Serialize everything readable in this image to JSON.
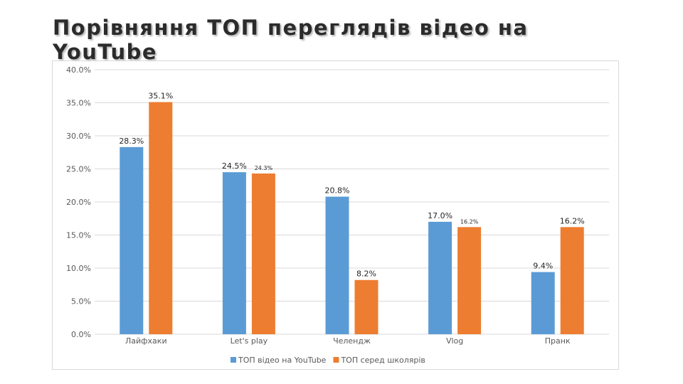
{
  "slide": {
    "title": "Порівняння ТОП переглядів відео на YouTube"
  },
  "chart_data": {
    "type": "bar",
    "categories": [
      "Лайфхаки",
      "Let's play",
      "Челендж",
      "Vlog",
      "Пранк"
    ],
    "series": [
      {
        "name": "ТОП відео на YouTube",
        "color": "#5B9BD5",
        "values": [
          28.3,
          24.5,
          20.8,
          17.0,
          9.4
        ],
        "labels": [
          "28.3%",
          "24.5%",
          "20.8%",
          "17.0%",
          "9.4%"
        ]
      },
      {
        "name": "ТОП серед школярів",
        "color": "#ED7D31",
        "values": [
          35.1,
          24.3,
          8.2,
          16.2,
          16.2
        ],
        "labels": [
          "35.1%",
          "24.3%",
          "8.2%",
          "16.2%",
          "16.2%"
        ]
      }
    ],
    "y_ticks": [
      "0.0%",
      "5.0%",
      "10.0%",
      "15.0%",
      "20.0%",
      "25.0%",
      "30.0%",
      "35.0%",
      "40.0%"
    ],
    "ylim": [
      0,
      40
    ],
    "grid": true,
    "legend_position": "bottom"
  }
}
